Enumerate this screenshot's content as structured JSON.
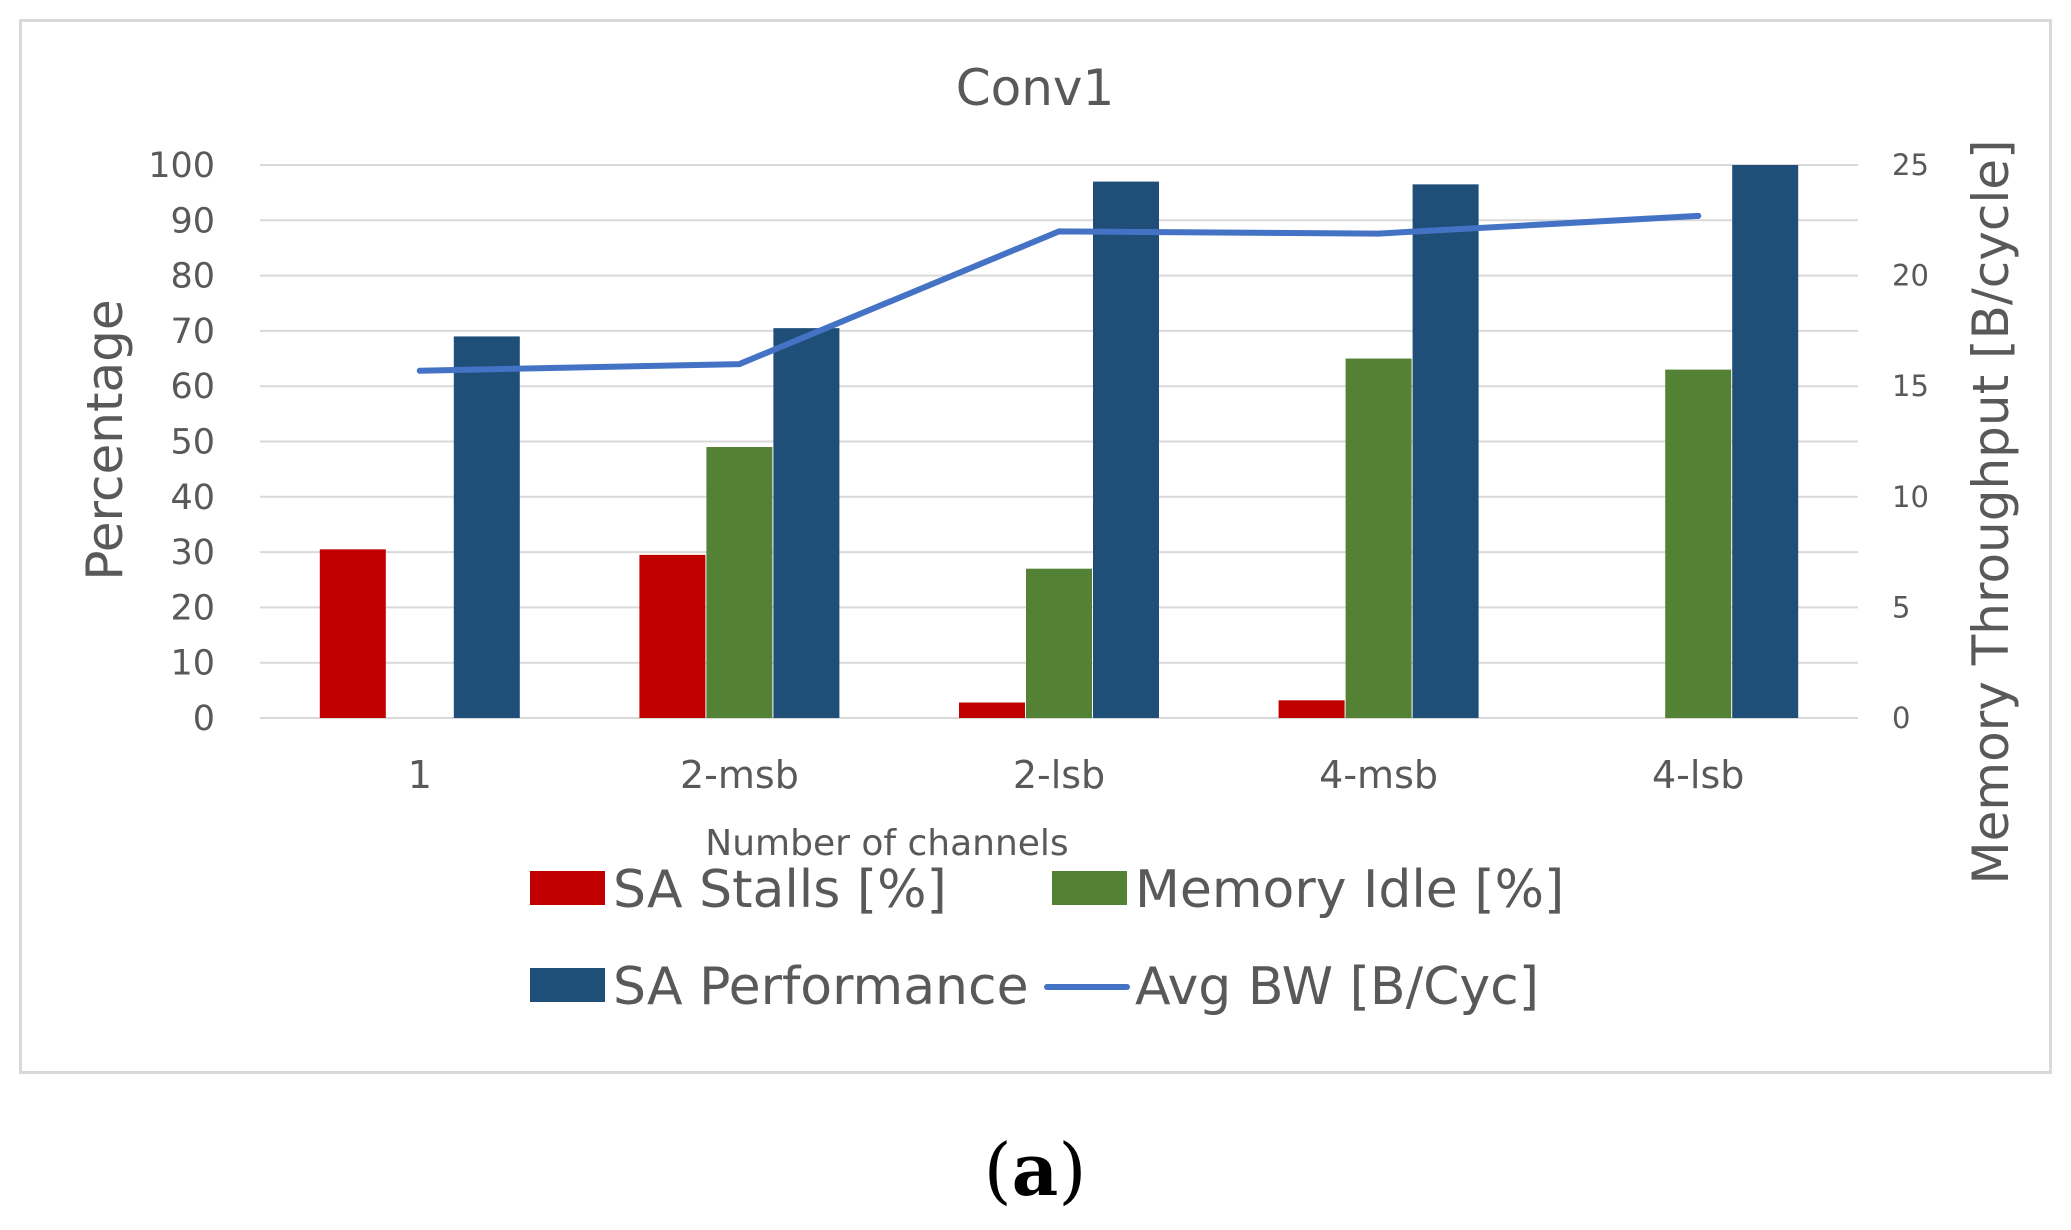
{
  "chart_data": {
    "type": "bar",
    "title": "Conv1",
    "xlabel": "Number of channels",
    "ylabel": "Percentage",
    "y2label": "Memory Throughput [B/cycle]",
    "categories": [
      "1",
      "2-msb",
      "2-lsb",
      "4-msb",
      "4-lsb"
    ],
    "ylim": [
      0,
      100
    ],
    "yticks": [
      0,
      10,
      20,
      30,
      40,
      50,
      60,
      70,
      80,
      90,
      100
    ],
    "y2lim": [
      0,
      25
    ],
    "y2ticks": [
      0,
      5,
      10,
      15,
      20,
      25
    ],
    "grid": true,
    "legend_position": "bottom",
    "series": [
      {
        "name": "SA Stalls [%]",
        "kind": "bar",
        "axis": "left",
        "color": "#c00000",
        "values": [
          30.5,
          29.5,
          2.8,
          3.2,
          0
        ]
      },
      {
        "name": "Memory Idle [%]",
        "kind": "bar",
        "axis": "left",
        "color": "#548235",
        "values": [
          0,
          49,
          27,
          65,
          63
        ]
      },
      {
        "name": "SA Performance",
        "kind": "bar",
        "axis": "left",
        "color": "#1f4e79",
        "values": [
          69,
          70.5,
          97,
          96.5,
          100
        ]
      },
      {
        "name": "Avg BW [B/Cyc]",
        "kind": "line",
        "axis": "right",
        "color": "#4472c4",
        "values": [
          15.7,
          16,
          22,
          21.9,
          22.7
        ]
      }
    ]
  },
  "caption": {
    "open": "(",
    "letter": "a",
    "close": ")"
  }
}
